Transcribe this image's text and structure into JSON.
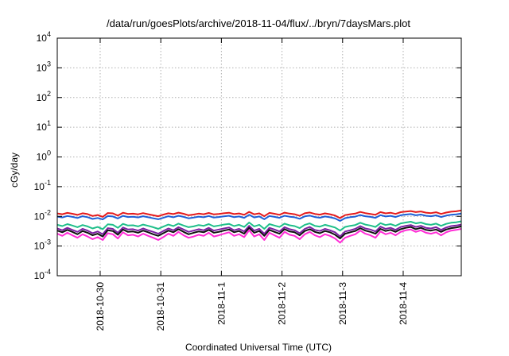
{
  "chart_data": {
    "type": "line",
    "title": "/data/run/goesPlots/archive/2018-11-04/flux/../bryn/7daysMars.plot",
    "xlabel": "Coordinated Universal Time (UTC)",
    "ylabel": "cGy/day",
    "yscale": "log",
    "ylim": [
      0.0001,
      10000
    ],
    "y_ticks": [
      {
        "base": "10",
        "exp": "4"
      },
      {
        "base": "10",
        "exp": "3"
      },
      {
        "base": "10",
        "exp": "2"
      },
      {
        "base": "10",
        "exp": "1"
      },
      {
        "base": "10",
        "exp": "0"
      },
      {
        "base": "10",
        "exp": "-1"
      },
      {
        "base": "10",
        "exp": "-2"
      },
      {
        "base": "10",
        "exp": "-3"
      },
      {
        "base": "10",
        "exp": "-4"
      }
    ],
    "xlim": [
      "2018-10-29T07:00",
      "2018-11-04T23:00"
    ],
    "x_ticks": [
      "2018-10-30",
      "2018-10-31",
      "2018-11-1",
      "2018-11-2",
      "2018-11-3",
      "2018-11-4"
    ],
    "grid": true,
    "legend": "none",
    "x": [
      "2018-10-29T07:00",
      "2018-10-29T09:00",
      "2018-10-29T11:00",
      "2018-10-29T13:00",
      "2018-10-29T15:00",
      "2018-10-29T17:00",
      "2018-10-29T19:00",
      "2018-10-29T21:00",
      "2018-10-29T23:00",
      "2018-10-30T01:00",
      "2018-10-30T03:00",
      "2018-10-30T05:00",
      "2018-10-30T07:00",
      "2018-10-30T09:00",
      "2018-10-30T11:00",
      "2018-10-30T13:00",
      "2018-10-30T15:00",
      "2018-10-30T17:00",
      "2018-10-30T19:00",
      "2018-10-30T21:00",
      "2018-10-30T23:00",
      "2018-10-31T01:00",
      "2018-10-31T03:00",
      "2018-10-31T05:00",
      "2018-10-31T07:00",
      "2018-10-31T09:00",
      "2018-10-31T11:00",
      "2018-10-31T13:00",
      "2018-10-31T15:00",
      "2018-10-31T17:00",
      "2018-10-31T19:00",
      "2018-10-31T21:00",
      "2018-10-31T23:00",
      "2018-11-01T01:00",
      "2018-11-01T03:00",
      "2018-11-01T05:00",
      "2018-11-01T07:00",
      "2018-11-01T09:00",
      "2018-11-01T11:00",
      "2018-11-01T13:00",
      "2018-11-01T15:00",
      "2018-11-01T17:00",
      "2018-11-01T19:00",
      "2018-11-01T21:00",
      "2018-11-01T23:00",
      "2018-11-02T01:00",
      "2018-11-02T03:00",
      "2018-11-02T05:00",
      "2018-11-02T07:00",
      "2018-11-02T09:00",
      "2018-11-02T11:00",
      "2018-11-02T13:00",
      "2018-11-02T15:00",
      "2018-11-02T17:00",
      "2018-11-02T19:00",
      "2018-11-02T21:00",
      "2018-11-02T23:00",
      "2018-11-03T01:00",
      "2018-11-03T03:00",
      "2018-11-03T05:00",
      "2018-11-03T07:00",
      "2018-11-03T09:00",
      "2018-11-03T11:00",
      "2018-11-03T13:00",
      "2018-11-03T15:00",
      "2018-11-03T17:00",
      "2018-11-03T19:00",
      "2018-11-03T21:00",
      "2018-11-03T23:00",
      "2018-11-04T01:00",
      "2018-11-04T03:00",
      "2018-11-04T05:00",
      "2018-11-04T07:00",
      "2018-11-04T09:00",
      "2018-11-04T11:00",
      "2018-11-04T13:00",
      "2018-11-04T15:00",
      "2018-11-04T17:00",
      "2018-11-04T19:00",
      "2018-11-04T21:00",
      "2018-11-04T23:00"
    ],
    "series": [
      {
        "color": "#e41a1c",
        "values": [
          0.0125,
          0.0118,
          0.0131,
          0.0122,
          0.0112,
          0.0127,
          0.0119,
          0.0103,
          0.0111,
          0.0096,
          0.0129,
          0.0126,
          0.0106,
          0.0132,
          0.0121,
          0.0123,
          0.0117,
          0.0128,
          0.0118,
          0.0109,
          0.0101,
          0.0114,
          0.0127,
          0.0119,
          0.0133,
          0.0122,
          0.0109,
          0.0115,
          0.0124,
          0.0118,
          0.013,
          0.0116,
          0.0121,
          0.0127,
          0.0132,
          0.0119,
          0.0125,
          0.0113,
          0.0142,
          0.0117,
          0.0126,
          0.0101,
          0.0131,
          0.0122,
          0.0113,
          0.0133,
          0.0124,
          0.0118,
          0.0104,
          0.0127,
          0.0135,
          0.0121,
          0.0114,
          0.0126,
          0.0118,
          0.0107,
          0.0087,
          0.011,
          0.0118,
          0.0124,
          0.0141,
          0.0128,
          0.0121,
          0.0113,
          0.0139,
          0.0126,
          0.0132,
          0.0121,
          0.0138,
          0.0145,
          0.0151,
          0.0139,
          0.0146,
          0.0133,
          0.0128,
          0.0137,
          0.0121,
          0.0134,
          0.0143,
          0.0148,
          0.0158
        ]
      },
      {
        "color": "#1f5fd6",
        "values": [
          0.0098,
          0.0092,
          0.0103,
          0.0096,
          0.0088,
          0.0101,
          0.0094,
          0.0082,
          0.0088,
          0.0079,
          0.0102,
          0.0099,
          0.0085,
          0.0104,
          0.0095,
          0.0097,
          0.0092,
          0.0101,
          0.0093,
          0.0086,
          0.008,
          0.0089,
          0.0101,
          0.0093,
          0.0105,
          0.0096,
          0.0086,
          0.0091,
          0.0098,
          0.0093,
          0.0103,
          0.0091,
          0.0095,
          0.01,
          0.0105,
          0.0094,
          0.0099,
          0.0089,
          0.0113,
          0.0092,
          0.0099,
          0.008,
          0.0103,
          0.0096,
          0.0089,
          0.0105,
          0.0097,
          0.0093,
          0.0083,
          0.01,
          0.0106,
          0.0095,
          0.009,
          0.0099,
          0.0093,
          0.0085,
          0.007,
          0.0087,
          0.0094,
          0.0098,
          0.0111,
          0.0101,
          0.0096,
          0.0089,
          0.011,
          0.0099,
          0.0104,
          0.0095,
          0.0109,
          0.0115,
          0.0119,
          0.0109,
          0.0115,
          0.0105,
          0.0101,
          0.0108,
          0.0095,
          0.0106,
          0.0113,
          0.0116,
          0.0124
        ]
      },
      {
        "color": "#1fbf8a",
        "values": [
          0.0052,
          0.0047,
          0.0055,
          0.0049,
          0.0043,
          0.0051,
          0.0046,
          0.0039,
          0.0044,
          0.0037,
          0.0054,
          0.0052,
          0.0041,
          0.0056,
          0.0049,
          0.005,
          0.0046,
          0.0053,
          0.0048,
          0.0043,
          0.0038,
          0.0045,
          0.0053,
          0.0047,
          0.0057,
          0.0049,
          0.0043,
          0.0046,
          0.0051,
          0.0048,
          0.0055,
          0.0046,
          0.0049,
          0.0053,
          0.0056,
          0.0047,
          0.0052,
          0.0044,
          0.0062,
          0.0046,
          0.0052,
          0.0038,
          0.0055,
          0.0049,
          0.0044,
          0.0057,
          0.005,
          0.0047,
          0.004,
          0.0052,
          0.0058,
          0.0048,
          0.0045,
          0.0052,
          0.0047,
          0.0042,
          0.0033,
          0.0044,
          0.0048,
          0.0051,
          0.0061,
          0.0053,
          0.0049,
          0.0044,
          0.0059,
          0.0051,
          0.0055,
          0.0048,
          0.0058,
          0.0062,
          0.0066,
          0.0058,
          0.0062,
          0.0055,
          0.0052,
          0.0057,
          0.0048,
          0.0056,
          0.0061,
          0.0063,
          0.0068
        ]
      },
      {
        "color": "#7b1fa2",
        "values": [
          0.0039,
          0.0034,
          0.0041,
          0.0035,
          0.003,
          0.0038,
          0.0033,
          0.0027,
          0.0031,
          0.0025,
          0.004,
          0.0038,
          0.0028,
          0.0042,
          0.0036,
          0.0037,
          0.0033,
          0.0039,
          0.0034,
          0.003,
          0.0026,
          0.0032,
          0.0039,
          0.0034,
          0.0043,
          0.0036,
          0.003,
          0.0033,
          0.0037,
          0.0034,
          0.0041,
          0.0033,
          0.0036,
          0.0039,
          0.0042,
          0.0034,
          0.0038,
          0.0031,
          0.0048,
          0.0033,
          0.0038,
          0.0026,
          0.0041,
          0.0036,
          0.0031,
          0.0043,
          0.0037,
          0.0034,
          0.0027,
          0.0038,
          0.0044,
          0.0035,
          0.0032,
          0.0038,
          0.0034,
          0.0029,
          0.0021,
          0.0031,
          0.0034,
          0.0038,
          0.0047,
          0.0039,
          0.0036,
          0.0031,
          0.0045,
          0.0038,
          0.0041,
          0.0035,
          0.0044,
          0.0048,
          0.0051,
          0.0044,
          0.0048,
          0.0041,
          0.0039,
          0.0043,
          0.0035,
          0.0042,
          0.0047,
          0.0049,
          0.0053
        ]
      },
      {
        "color": "#111111",
        "values": [
          0.0033,
          0.0029,
          0.0035,
          0.003,
          0.0025,
          0.0032,
          0.0028,
          0.0023,
          0.0026,
          0.0021,
          0.0034,
          0.0032,
          0.0024,
          0.0036,
          0.003,
          0.0031,
          0.0028,
          0.0033,
          0.0029,
          0.0025,
          0.0022,
          0.0027,
          0.0033,
          0.0029,
          0.0037,
          0.003,
          0.0025,
          0.0028,
          0.0031,
          0.0029,
          0.0035,
          0.0028,
          0.003,
          0.0033,
          0.0036,
          0.0029,
          0.0032,
          0.0026,
          0.0041,
          0.0028,
          0.0032,
          0.0022,
          0.0035,
          0.003,
          0.0026,
          0.0037,
          0.0031,
          0.0029,
          0.0023,
          0.0032,
          0.0037,
          0.003,
          0.0027,
          0.0032,
          0.0029,
          0.0024,
          0.0018,
          0.0026,
          0.0029,
          0.0032,
          0.004,
          0.0033,
          0.003,
          0.0026,
          0.0038,
          0.0032,
          0.0035,
          0.003,
          0.0037,
          0.0041,
          0.0044,
          0.0037,
          0.0041,
          0.0035,
          0.0033,
          0.0036,
          0.003,
          0.0036,
          0.004,
          0.0042,
          0.0046
        ]
      },
      {
        "color": "#ff2bd6",
        "values": [
          0.0026,
          0.0022,
          0.0028,
          0.0023,
          0.0019,
          0.0025,
          0.0021,
          0.0017,
          0.002,
          0.0016,
          0.0027,
          0.0025,
          0.0018,
          0.0029,
          0.0023,
          0.0024,
          0.0021,
          0.0026,
          0.0022,
          0.0019,
          0.0016,
          0.002,
          0.0026,
          0.0022,
          0.003,
          0.0023,
          0.0019,
          0.0021,
          0.0024,
          0.0022,
          0.0028,
          0.0021,
          0.0023,
          0.0026,
          0.0029,
          0.0022,
          0.0025,
          0.002,
          0.0034,
          0.0021,
          0.0025,
          0.0016,
          0.0028,
          0.0023,
          0.0019,
          0.003,
          0.0024,
          0.0022,
          0.0017,
          0.0025,
          0.003,
          0.0023,
          0.002,
          0.0025,
          0.0022,
          0.0018,
          0.0013,
          0.0019,
          0.0022,
          0.0025,
          0.0033,
          0.0026,
          0.0023,
          0.0019,
          0.0031,
          0.0025,
          0.0028,
          0.0023,
          0.003,
          0.0034,
          0.0036,
          0.003,
          0.0034,
          0.0028,
          0.0026,
          0.0029,
          0.0023,
          0.0029,
          0.0033,
          0.0035,
          0.0038
        ]
      }
    ]
  }
}
